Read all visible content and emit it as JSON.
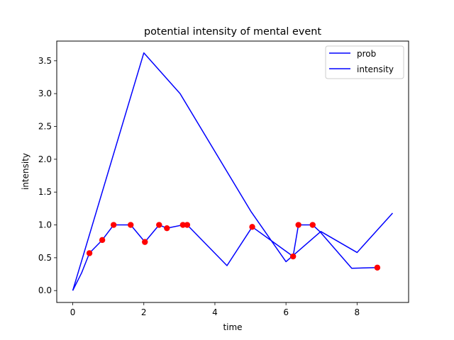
{
  "chart_data": {
    "type": "line",
    "title": "potential intensity of mental event",
    "xlabel": "time",
    "ylabel": "intensity",
    "xlim": [
      -0.45,
      9.45
    ],
    "ylim": [
      -0.181,
      3.8
    ],
    "xticks": [
      0,
      2,
      4,
      6,
      8
    ],
    "xtick_labels": [
      "0",
      "2",
      "4",
      "6",
      "8"
    ],
    "yticks": [
      0.0,
      0.5,
      1.0,
      1.5,
      2.0,
      2.5,
      3.0,
      3.5
    ],
    "ytick_labels": [
      "0.0",
      "0.5",
      "1.0",
      "1.5",
      "2.0",
      "2.5",
      "3.0",
      "3.5"
    ],
    "grid": false,
    "legend_position": "top-right",
    "series": [
      {
        "name": "prob",
        "color": "#0000ff",
        "x": [
          0.0,
          2.0,
          3.02,
          5.02,
          6.0,
          6.98,
          8.0,
          9.0
        ],
        "y": [
          0.0,
          3.62,
          3.0,
          1.2,
          0.44,
          0.9,
          0.58,
          1.18
        ]
      },
      {
        "name": "intensity",
        "color": "#0000ff",
        "x": [
          0.0,
          0.25,
          0.47,
          0.83,
          1.15,
          1.63,
          2.03,
          2.43,
          2.65,
          3.1,
          3.22,
          4.34,
          5.05,
          6.2,
          6.35,
          6.75,
          6.95,
          7.85,
          8.57
        ],
        "y": [
          0.0,
          0.27,
          0.57,
          0.77,
          1.0,
          1.0,
          0.74,
          1.0,
          0.95,
          1.0,
          1.0,
          0.38,
          0.97,
          0.52,
          1.0,
          1.0,
          0.9,
          0.34,
          0.35
        ]
      }
    ],
    "markers": {
      "color": "#ff0000",
      "x": [
        0.47,
        0.83,
        1.15,
        1.63,
        2.03,
        2.43,
        2.65,
        3.1,
        3.22,
        5.05,
        6.2,
        6.35,
        6.75,
        8.57
      ],
      "y": [
        0.57,
        0.77,
        1.0,
        1.0,
        0.74,
        1.0,
        0.95,
        1.0,
        1.0,
        0.97,
        0.52,
        1.0,
        1.0,
        0.35
      ]
    }
  }
}
